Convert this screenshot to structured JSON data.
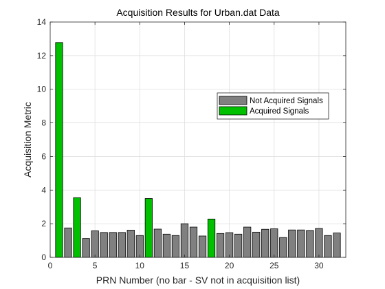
{
  "chart_data": {
    "type": "bar",
    "title": "Acquisition Results for Urban.dat Data",
    "xlabel": "PRN Number (no bar - SV not in acquisition list)",
    "ylabel": "Acquisition Metric",
    "xlim": [
      0,
      33
    ],
    "ylim": [
      0,
      14
    ],
    "xticks": [
      0,
      5,
      10,
      15,
      20,
      25,
      30
    ],
    "yticks": [
      0,
      2,
      4,
      6,
      8,
      10,
      12,
      14
    ],
    "grid": true,
    "legend_position": "upper-right",
    "series": [
      {
        "name": "Not Acquired Signals",
        "color": "#808080",
        "x": [
          2,
          4,
          5,
          6,
          7,
          8,
          9,
          10,
          12,
          13,
          14,
          15,
          16,
          17,
          19,
          20,
          21,
          22,
          23,
          24,
          25,
          26,
          27,
          28,
          29,
          30,
          31,
          32
        ],
        "values": [
          1.75,
          1.12,
          1.58,
          1.48,
          1.48,
          1.48,
          1.62,
          1.3,
          1.68,
          1.38,
          1.3,
          2.0,
          1.8,
          1.27,
          1.42,
          1.47,
          1.38,
          1.8,
          1.5,
          1.67,
          1.7,
          1.18,
          1.63,
          1.63,
          1.6,
          1.72,
          1.3,
          1.45
        ]
      },
      {
        "name": "Acquired Signals",
        "color": "#00c000",
        "x": [
          1,
          3,
          11,
          18
        ],
        "values": [
          12.78,
          3.55,
          3.5,
          2.28
        ]
      }
    ]
  }
}
